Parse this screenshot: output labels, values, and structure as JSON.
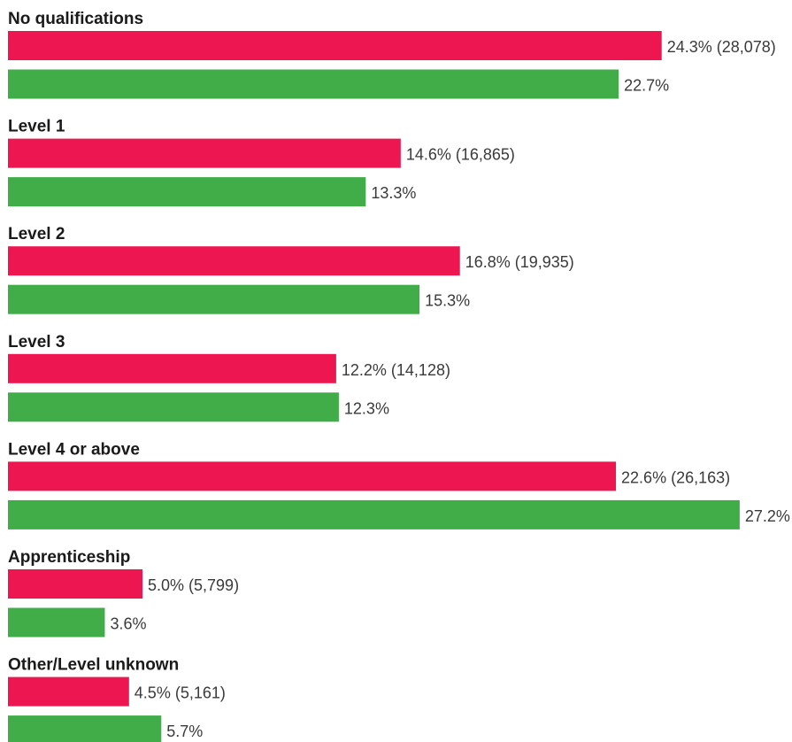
{
  "chart_data": {
    "type": "bar",
    "orientation": "horizontal",
    "colors": {
      "series_1": "#ee1651",
      "series_2": "#40ad49"
    },
    "categories": [
      "No qualifications",
      "Level 1",
      "Level 2",
      "Level 3",
      "Level 4 or above",
      "Apprenticeship",
      "Other/Level unknown"
    ],
    "series": [
      {
        "values": [
          24.3,
          14.6,
          16.8,
          12.2,
          22.6,
          5.0,
          4.5
        ],
        "counts": [
          28078,
          16865,
          19935,
          14128,
          26163,
          5799,
          5161
        ],
        "labels": [
          "24.3% (28,078)",
          "14.6% (16,865)",
          "16.8% (19,935)",
          "12.2% (14,128)",
          "22.6% (26,163)",
          "5.0% (5,799)",
          "4.5% (5,161)"
        ]
      },
      {
        "values": [
          22.7,
          13.3,
          15.3,
          12.3,
          27.2,
          3.6,
          5.7
        ],
        "labels": [
          "22.7%",
          "13.3%",
          "15.3%",
          "12.3%",
          "27.2%",
          "3.6%",
          "5.7%"
        ]
      }
    ]
  }
}
